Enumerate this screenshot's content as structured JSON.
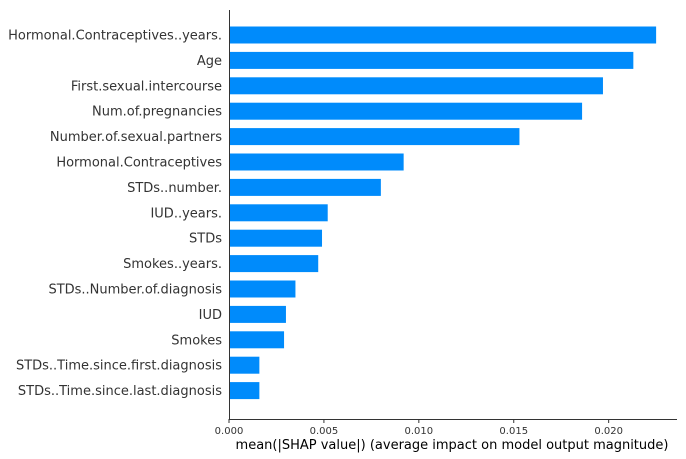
{
  "chart_data": {
    "type": "bar",
    "orientation": "horizontal",
    "categories": [
      "Hormonal.Contraceptives..years.",
      "Age",
      "First.sexual.intercourse",
      "Num.of.pregnancies",
      "Number.of.sexual.partners",
      "Hormonal.Contraceptives",
      "STDs..number.",
      "IUD..years.",
      "STDs",
      "Smokes..years.",
      "STDs..Number.of.diagnosis",
      "IUD",
      "Smokes",
      "STDs..Time.since.first.diagnosis",
      "STDs..Time.since.last.diagnosis"
    ],
    "values": [
      0.0225,
      0.0213,
      0.0197,
      0.0186,
      0.0153,
      0.0092,
      0.008,
      0.0052,
      0.0049,
      0.0047,
      0.0035,
      0.003,
      0.0029,
      0.0016,
      0.0016
    ],
    "xlabel": "mean(|SHAP value|) (average impact on model output magnitude)",
    "xlim": [
      0,
      0.0236
    ],
    "xticks": [
      "0.000",
      "0.005",
      "0.010",
      "0.015",
      "0.020"
    ],
    "bar_color": "#008bfb",
    "grid": false
  }
}
